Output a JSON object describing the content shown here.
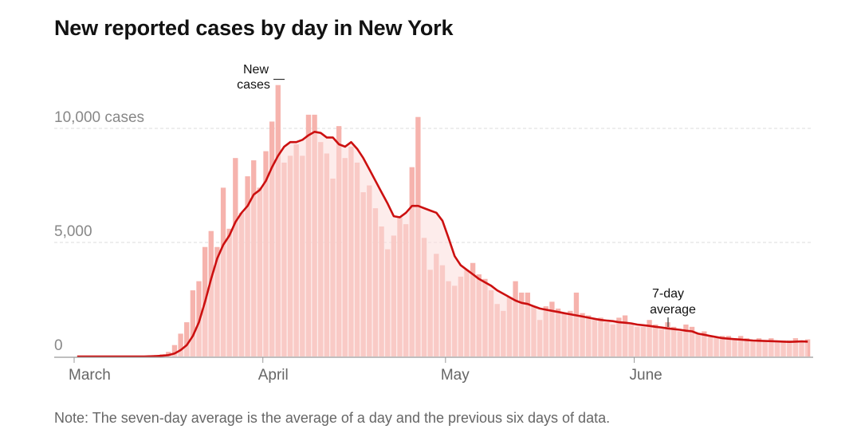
{
  "title": "New reported cases by day in New York",
  "note": "Note: The seven-day average is the average of a day and the previous six days of data.",
  "colors": {
    "bar": "#f6b3ad",
    "area": "#fbdcda",
    "line": "#cc1010",
    "grid": "#dddddd",
    "axis": "#999999"
  },
  "chart_data": {
    "type": "bar",
    "title": "New reported cases by day in New York",
    "y_tick_labels": [
      "10,000 cases",
      "5,000",
      "0"
    ],
    "y_tick_values": [
      10000,
      5000,
      0
    ],
    "x_tick_labels": [
      "March",
      "April",
      "May",
      "June"
    ],
    "x_tick_dates": [
      "2020-03-01",
      "2020-04-01",
      "2020-05-01",
      "2020-06-01"
    ],
    "ylim": [
      0,
      12300
    ],
    "grid": true,
    "annotations": {
      "new_cases": [
        "New",
        "cases"
      ],
      "average": [
        "7-day",
        "average"
      ]
    },
    "series": [
      {
        "name": "New cases",
        "type": "bar",
        "x_start": "2020-03-01",
        "x_end": "2020-06-29",
        "values": [
          0,
          0,
          0,
          0,
          0,
          0,
          0,
          0,
          0,
          0,
          0,
          0,
          50,
          60,
          100,
          200,
          500,
          1000,
          1500,
          2900,
          3300,
          4800,
          5500,
          4800,
          7400,
          5600,
          8700,
          6300,
          7900,
          8600,
          7400,
          9000,
          10300,
          11900,
          8500,
          8800,
          9300,
          8800,
          10600,
          10600,
          9400,
          8900,
          7800,
          10100,
          8700,
          9200,
          8500,
          7200,
          7500,
          6500,
          5700,
          4700,
          5300,
          6100,
          5800,
          8300,
          10500,
          5200,
          3800,
          4500,
          4000,
          3300,
          3100,
          3500,
          3800,
          4100,
          3600,
          3400,
          2900,
          2300,
          2000,
          2600,
          3300,
          2800,
          2800,
          2200,
          1600,
          2200,
          2400,
          2100,
          1900,
          2000,
          2800,
          1900,
          1800,
          1600,
          1700,
          1500,
          1400,
          1700,
          1800,
          1400,
          1300,
          1300,
          1600,
          1400,
          1200,
          1500,
          1300,
          1100,
          1400,
          1300,
          1000,
          1100,
          900,
          800,
          900,
          900,
          800,
          900,
          800,
          700,
          800,
          700,
          800,
          700,
          700,
          700,
          800,
          700,
          750
        ]
      },
      {
        "name": "7-day average",
        "type": "line",
        "x_start": "2020-03-01",
        "x_end": "2020-06-29",
        "values": [
          0,
          0,
          0,
          0,
          0,
          0,
          0,
          0,
          0,
          0,
          0,
          0,
          7,
          16,
          30,
          59,
          130,
          280,
          500,
          900,
          1500,
          2400,
          3400,
          4300,
          4900,
          5300,
          5900,
          6300,
          6600,
          7100,
          7300,
          7700,
          8300,
          8800,
          9200,
          9400,
          9400,
          9500,
          9700,
          9850,
          9800,
          9600,
          9600,
          9300,
          9200,
          9400,
          9100,
          8700,
          8200,
          7700,
          7200,
          6700,
          6150,
          6100,
          6300,
          6600,
          6600,
          6500,
          6400,
          6300,
          5950,
          5200,
          4400,
          4000,
          3800,
          3600,
          3400,
          3250,
          3100,
          2900,
          2750,
          2600,
          2450,
          2350,
          2300,
          2200,
          2100,
          2050,
          2000,
          1950,
          1900,
          1850,
          1800,
          1750,
          1700,
          1650,
          1600,
          1575,
          1550,
          1500,
          1480,
          1450,
          1400,
          1370,
          1340,
          1300,
          1270,
          1230,
          1200,
          1170,
          1130,
          1100,
          1000,
          950,
          900,
          850,
          800,
          780,
          760,
          740,
          720,
          700,
          690,
          680,
          670,
          660,
          650,
          640,
          650,
          660,
          650
        ]
      }
    ]
  }
}
